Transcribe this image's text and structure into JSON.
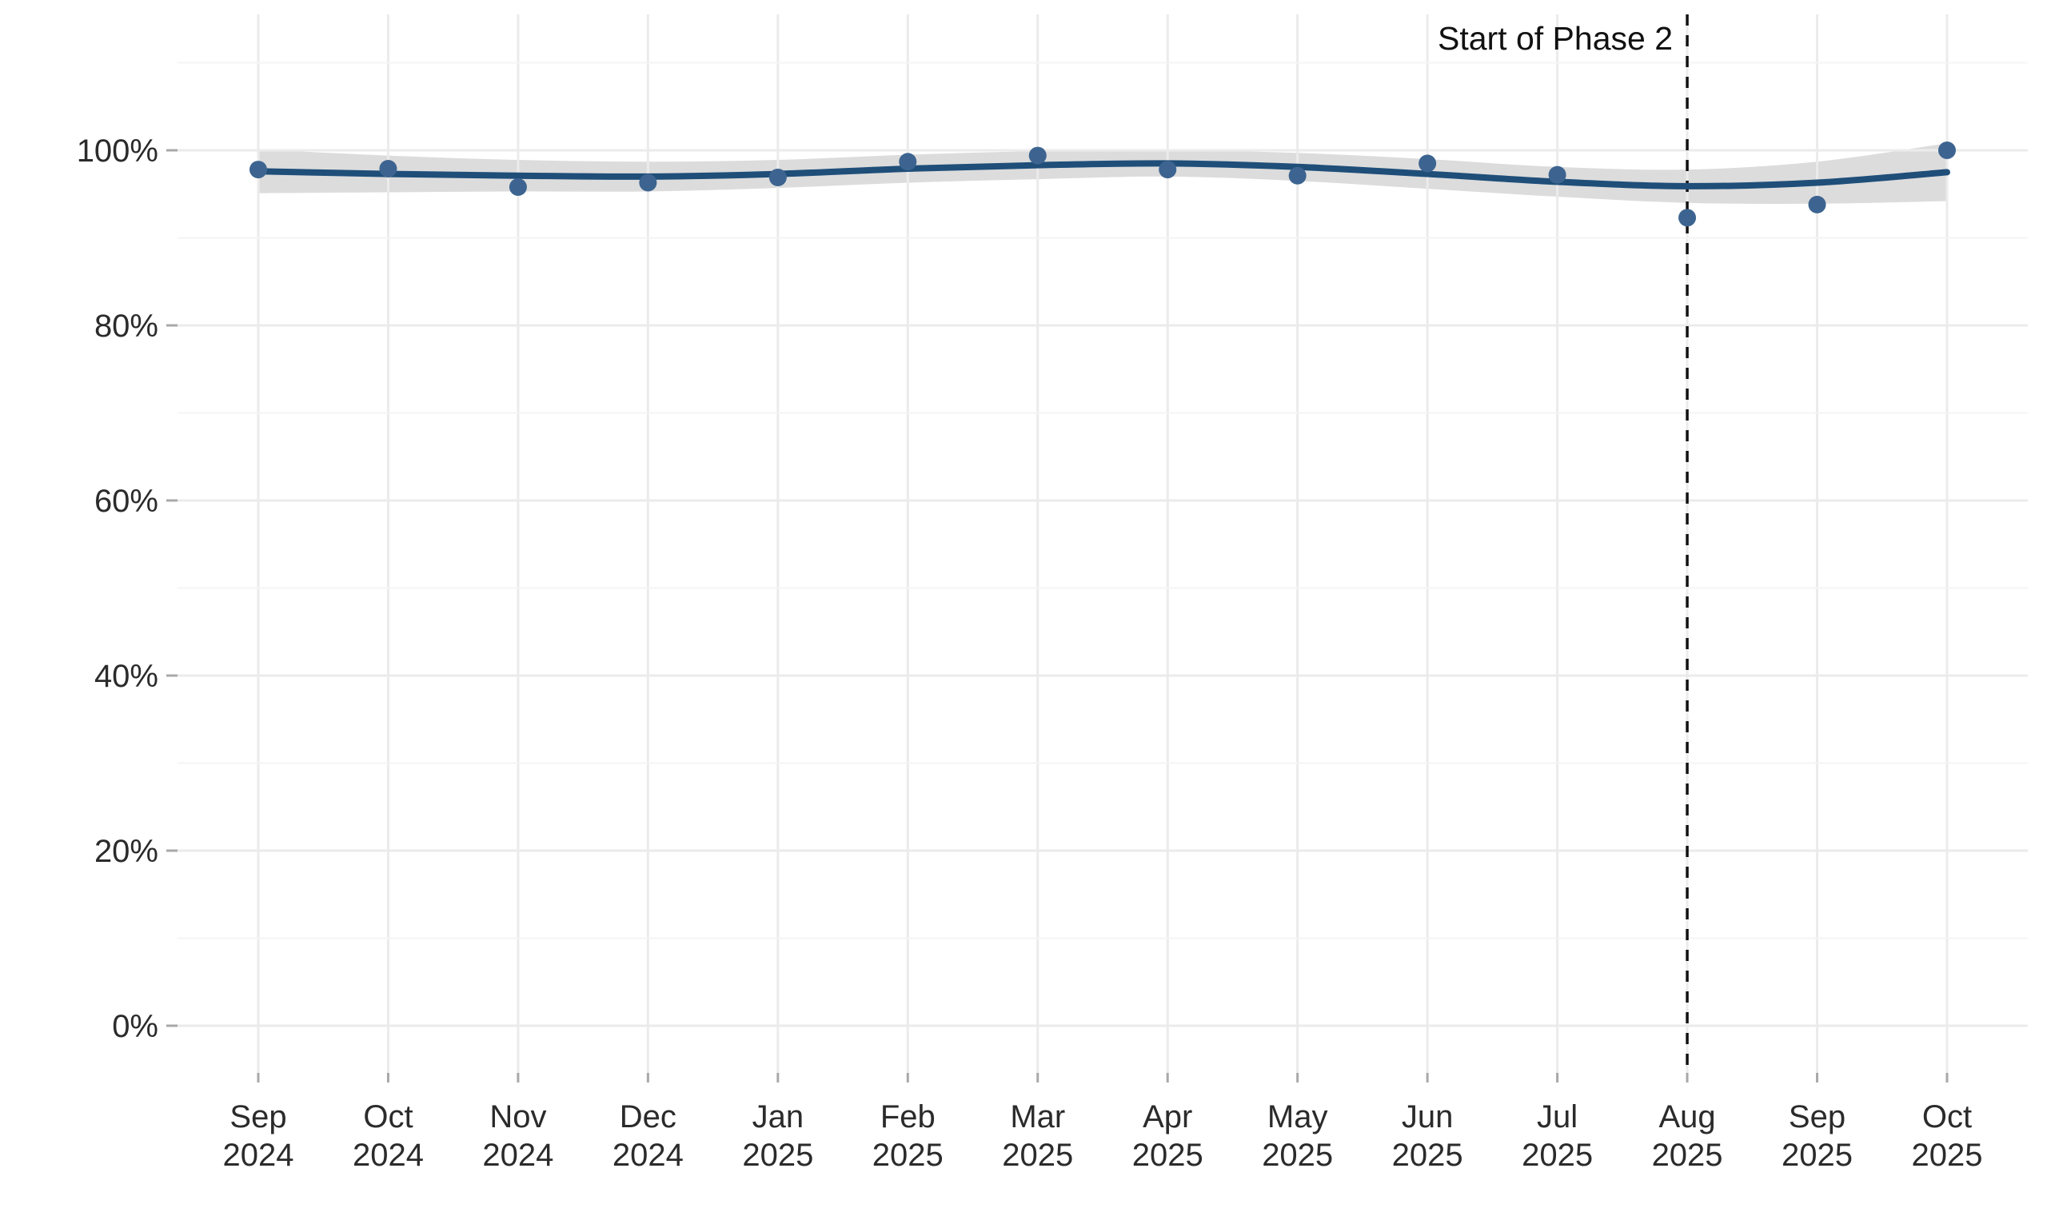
{
  "chart_data": {
    "type": "scatter",
    "title": "",
    "xlabel": "",
    "ylabel": "",
    "categories": [
      "Sep 2024",
      "Oct 2024",
      "Nov 2024",
      "Dec 2024",
      "Jan 2025",
      "Feb 2025",
      "Mar 2025",
      "Apr 2025",
      "May 2025",
      "Jun 2025",
      "Jul 2025",
      "Aug 2025",
      "Sep 2025",
      "Oct 2025"
    ],
    "series": [
      {
        "name": "observed_points",
        "type": "scatter",
        "values": [
          97.8,
          97.9,
          95.8,
          96.3,
          96.9,
          98.7,
          99.4,
          97.8,
          97.1,
          98.5,
          97.2,
          92.3,
          93.8,
          100.0
        ]
      },
      {
        "name": "smooth_trend",
        "type": "line",
        "values": [
          97.6,
          97.3,
          97.1,
          97.0,
          97.3,
          97.9,
          98.3,
          98.5,
          98.1,
          97.3,
          96.4,
          95.9,
          96.3,
          97.5
        ]
      },
      {
        "name": "ci_upper",
        "type": "band-edge",
        "values": [
          100.1,
          99.4,
          98.9,
          98.7,
          98.9,
          99.5,
          99.9,
          100.0,
          99.7,
          99.0,
          98.1,
          97.8,
          98.7,
          100.8
        ]
      },
      {
        "name": "ci_lower",
        "type": "band-edge",
        "values": [
          95.1,
          95.2,
          95.3,
          95.3,
          95.7,
          96.3,
          96.7,
          97.0,
          96.5,
          95.6,
          94.7,
          94.0,
          93.9,
          94.2
        ]
      }
    ],
    "y_ticks": [
      {
        "value": 0,
        "label": "0%"
      },
      {
        "value": 20,
        "label": "20%"
      },
      {
        "value": 40,
        "label": "40%"
      },
      {
        "value": 60,
        "label": "60%"
      },
      {
        "value": 80,
        "label": "80%"
      },
      {
        "value": 100,
        "label": "100%"
      }
    ],
    "y_minor_ticks": [
      10,
      30,
      50,
      70,
      90,
      110
    ],
    "ylim": [
      -5.4,
      115.6
    ],
    "grid": "on",
    "legend": "none",
    "annotation": {
      "label": "Start of Phase 2",
      "x": "Aug 2025"
    },
    "colors": {
      "trend_line": "#1f4e79",
      "point": "#3d6490",
      "ci_band": "#dcdcdc",
      "grid_major": "#ebebeb",
      "grid_minor": "#f4f4f4",
      "axis_text": "#2b2b2b",
      "tick_mark": "#a8a8a8",
      "vline": "#111111",
      "annotation_text": "#111111",
      "background": "#ffffff"
    }
  }
}
